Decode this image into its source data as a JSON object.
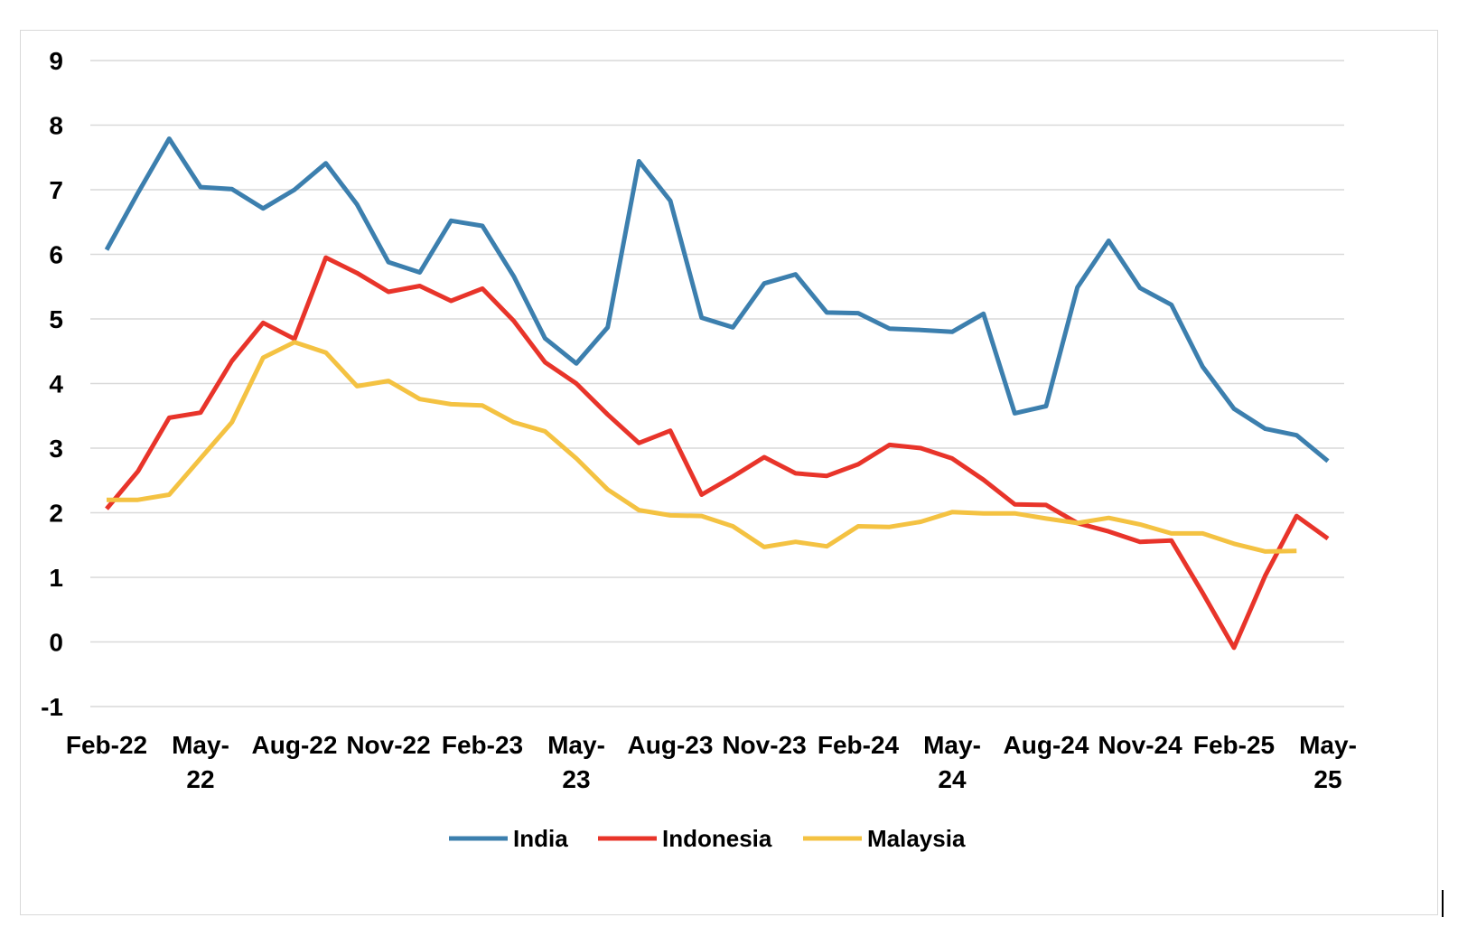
{
  "chart_data": {
    "type": "line",
    "title": "",
    "xlabel": "",
    "ylabel": "",
    "ylim": [
      -1,
      9
    ],
    "yticks": [
      -1,
      0,
      1,
      2,
      3,
      4,
      5,
      6,
      7,
      8,
      9
    ],
    "grid": true,
    "legend_position": "bottom",
    "x": [
      "Feb-22",
      "Mar-22",
      "Apr-22",
      "May-22",
      "Jun-22",
      "Jul-22",
      "Aug-22",
      "Sep-22",
      "Oct-22",
      "Nov-22",
      "Dec-22",
      "Jan-23",
      "Feb-23",
      "Mar-23",
      "Apr-23",
      "May-23",
      "Jun-23",
      "Jul-23",
      "Aug-23",
      "Sep-23",
      "Oct-23",
      "Nov-23",
      "Dec-23",
      "Jan-24",
      "Feb-24",
      "Mar-24",
      "Apr-24",
      "May-24",
      "Jun-24",
      "Jul-24",
      "Aug-24",
      "Sep-24",
      "Oct-24",
      "Nov-24",
      "Dec-24",
      "Jan-25",
      "Feb-25",
      "Mar-25",
      "Apr-25",
      "May-25"
    ],
    "x_tick_labels": [
      {
        "index": 0,
        "lines": [
          "Feb-22"
        ]
      },
      {
        "index": 3,
        "lines": [
          "May-",
          "22"
        ]
      },
      {
        "index": 6,
        "lines": [
          "Aug-22"
        ]
      },
      {
        "index": 9,
        "lines": [
          "Nov-22"
        ]
      },
      {
        "index": 12,
        "lines": [
          "Feb-23"
        ]
      },
      {
        "index": 15,
        "lines": [
          "May-",
          "23"
        ]
      },
      {
        "index": 18,
        "lines": [
          "Aug-23"
        ]
      },
      {
        "index": 21,
        "lines": [
          "Nov-23"
        ]
      },
      {
        "index": 24,
        "lines": [
          "Feb-24"
        ]
      },
      {
        "index": 27,
        "lines": [
          "May-",
          "24"
        ]
      },
      {
        "index": 30,
        "lines": [
          "Aug-24"
        ]
      },
      {
        "index": 33,
        "lines": [
          "Nov-24"
        ]
      },
      {
        "index": 36,
        "lines": [
          "Feb-25"
        ]
      },
      {
        "index": 39,
        "lines": [
          "May-",
          "25"
        ]
      }
    ],
    "series": [
      {
        "name": "India",
        "color": "#3C7FAE",
        "values": [
          6.07,
          6.95,
          7.79,
          7.04,
          7.01,
          6.71,
          7.0,
          7.41,
          6.77,
          5.88,
          5.72,
          6.52,
          6.44,
          5.66,
          4.7,
          4.31,
          4.87,
          7.44,
          6.83,
          5.02,
          4.87,
          5.55,
          5.69,
          5.1,
          5.09,
          4.85,
          4.83,
          4.8,
          5.08,
          3.54,
          3.65,
          5.49,
          6.21,
          5.48,
          5.22,
          4.26,
          3.61,
          3.3,
          3.2,
          2.8
        ]
      },
      {
        "name": "Indonesia",
        "color": "#E8342A",
        "values": [
          2.06,
          2.64,
          3.47,
          3.55,
          4.35,
          4.94,
          4.69,
          5.95,
          5.71,
          5.42,
          5.51,
          5.28,
          5.47,
          4.97,
          4.33,
          4.0,
          3.52,
          3.08,
          3.27,
          2.28,
          2.56,
          2.86,
          2.61,
          2.57,
          2.75,
          3.05,
          3.0,
          2.84,
          2.51,
          2.13,
          2.12,
          1.84,
          1.71,
          1.55,
          1.57,
          0.76,
          -0.09,
          1.03,
          1.95,
          1.6
        ]
      },
      {
        "name": "Malaysia",
        "color": "#F4C242",
        "values": [
          2.2,
          2.2,
          2.28,
          2.84,
          3.4,
          4.4,
          4.64,
          4.48,
          3.96,
          4.04,
          3.76,
          3.68,
          3.66,
          3.4,
          3.26,
          2.84,
          2.36,
          2.04,
          1.96,
          1.95,
          1.79,
          1.47,
          1.55,
          1.48,
          1.79,
          1.78,
          1.86,
          2.01,
          1.99,
          1.99,
          1.91,
          1.84,
          1.92,
          1.82,
          1.68,
          1.68,
          1.52,
          1.4,
          1.41,
          null
        ]
      }
    ]
  }
}
